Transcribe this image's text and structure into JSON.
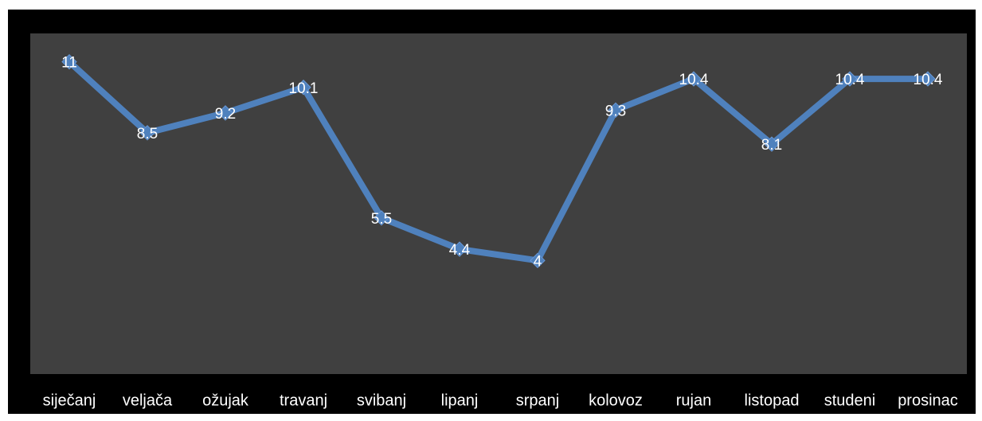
{
  "chart_data": {
    "type": "line",
    "categories": [
      "siječanj",
      "veljača",
      "ožujak",
      "travanj",
      "svibanj",
      "lipanj",
      "srpanj",
      "kolovoz",
      "rujan",
      "listopad",
      "studeni",
      "prosinac"
    ],
    "series": [
      {
        "color": "#4f81bd",
        "values": [
          11,
          8.5,
          9.2,
          10.1,
          5.5,
          4.4,
          4,
          9.3,
          10.4,
          8.1,
          10.4,
          10.4
        ]
      }
    ],
    "ylim": [
      0,
      12
    ]
  }
}
